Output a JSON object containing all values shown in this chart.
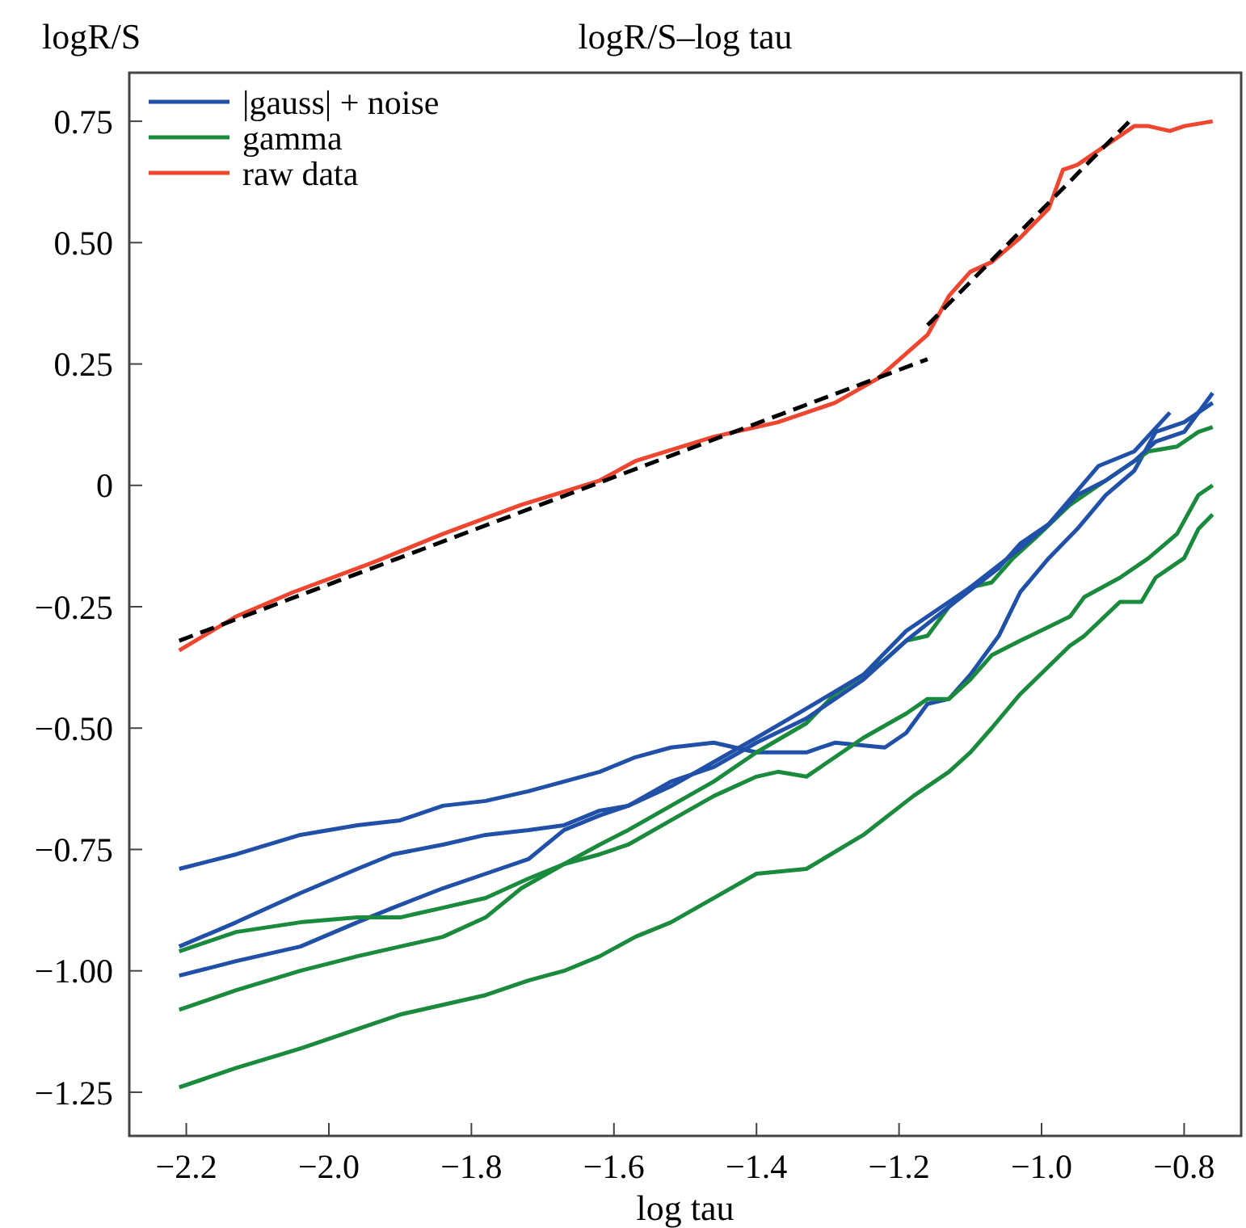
{
  "chart_data": {
    "type": "line",
    "title": "logR/S–log tau",
    "xlabel": "log tau",
    "ylabel": "logR/S",
    "xlim": [
      -2.28,
      -0.72
    ],
    "ylim": [
      -1.34,
      0.85
    ],
    "xticks": [
      {
        "value": -2.2,
        "label": "−2.2"
      },
      {
        "value": -2.0,
        "label": "−2.0"
      },
      {
        "value": -1.8,
        "label": "−1.8"
      },
      {
        "value": -1.6,
        "label": "−1.6"
      },
      {
        "value": -1.4,
        "label": "−1.4"
      },
      {
        "value": -1.2,
        "label": "−1.2"
      },
      {
        "value": -1.0,
        "label": "−1.0"
      },
      {
        "value": -0.8,
        "label": "−0.8"
      }
    ],
    "yticks": [
      {
        "value": 0.75,
        "label": "0.75"
      },
      {
        "value": 0.5,
        "label": "0.50"
      },
      {
        "value": 0.25,
        "label": "0.25"
      },
      0,
      {
        "value": -0.25,
        "label": "−0.25"
      },
      {
        "value": -0.5,
        "label": "−0.50"
      },
      {
        "value": -0.75,
        "label": "−0.75"
      },
      {
        "value": -1.0,
        "label": "−1.00"
      },
      {
        "value": -1.25,
        "label": "−1.25"
      }
    ],
    "legend": "top left",
    "line_style": "solid",
    "series": [
      {
        "name": "|gauss| + noise",
        "color": "#2150a8",
        "x": [
          -2.21,
          -2.13,
          -2.04,
          -1.96,
          -1.9,
          -1.84,
          -1.78,
          -1.72,
          -1.67,
          -1.62,
          -1.57,
          -1.52,
          -1.46,
          -1.4,
          -1.33,
          -1.29,
          -1.22,
          -1.19,
          -1.16,
          -1.13,
          -1.1,
          -1.06,
          -1.03,
          -0.99,
          -0.95,
          -0.91,
          -0.87,
          -0.84,
          -0.8,
          -0.76
        ],
        "values": [
          -0.79,
          -0.76,
          -0.72,
          -0.7,
          -0.69,
          -0.66,
          -0.65,
          -0.63,
          -0.61,
          -0.59,
          -0.56,
          -0.54,
          -0.53,
          -0.55,
          -0.55,
          -0.53,
          -0.54,
          -0.51,
          -0.45,
          -0.44,
          -0.39,
          -0.31,
          -0.22,
          -0.15,
          -0.09,
          -0.02,
          0.03,
          0.11,
          0.13,
          0.17
        ]
      },
      {
        "name": "gamma",
        "color": "#1a8a3c",
        "x": [
          -2.21,
          -2.13,
          -2.04,
          -1.96,
          -1.9,
          -1.84,
          -1.78,
          -1.73,
          -1.67,
          -1.62,
          -1.58,
          -1.52,
          -1.46,
          -1.4,
          -1.33,
          -1.29,
          -1.22,
          -1.19,
          -1.16,
          -1.13,
          -1.1,
          -1.07,
          -1.04,
          -1.01,
          -0.96,
          -0.94,
          -0.89,
          -0.85,
          -0.81,
          -0.78,
          -0.76
        ],
        "values": [
          -1.08,
          -1.04,
          -1.0,
          -0.97,
          -0.95,
          -0.93,
          -0.89,
          -0.83,
          -0.78,
          -0.74,
          -0.71,
          -0.66,
          -0.61,
          -0.55,
          -0.49,
          -0.43,
          -0.36,
          -0.32,
          -0.31,
          -0.25,
          -0.21,
          -0.2,
          -0.15,
          -0.11,
          -0.04,
          -0.02,
          0.03,
          0.07,
          0.08,
          0.11,
          0.12
        ]
      },
      {
        "name": "raw data",
        "color": "#ef4630",
        "x": [
          -2.21,
          -2.13,
          -2.05,
          -1.94,
          -1.84,
          -1.73,
          -1.62,
          -1.57,
          -1.46,
          -1.37,
          -1.29,
          -1.23,
          -1.16,
          -1.13,
          -1.1,
          -1.07,
          -1.03,
          -0.99,
          -0.97,
          -0.95,
          -0.91,
          -0.87,
          -0.85,
          -0.82,
          -0.8,
          -0.76
        ],
        "values": [
          -0.34,
          -0.27,
          -0.22,
          -0.16,
          -0.1,
          -0.04,
          0.01,
          0.05,
          0.1,
          0.13,
          0.17,
          0.22,
          0.31,
          0.39,
          0.44,
          0.46,
          0.51,
          0.57,
          0.65,
          0.66,
          0.7,
          0.74,
          0.74,
          0.73,
          0.74,
          0.75
        ]
      },
      {
        "color": "#2150a8",
        "x": [
          -2.21,
          -2.13,
          -2.04,
          -1.96,
          -1.91,
          -1.84,
          -1.78,
          -1.72,
          -1.67,
          -1.62,
          -1.58,
          -1.52,
          -1.46,
          -1.4,
          -1.33,
          -1.25,
          -1.19,
          -1.13,
          -1.1,
          -1.03,
          -0.99,
          -0.92,
          -0.87,
          -0.82
        ],
        "values": [
          -0.95,
          -0.9,
          -0.84,
          -0.79,
          -0.76,
          -0.74,
          -0.72,
          -0.71,
          -0.7,
          -0.67,
          -0.66,
          -0.62,
          -0.57,
          -0.52,
          -0.46,
          -0.39,
          -0.3,
          -0.24,
          -0.21,
          -0.13,
          -0.08,
          0.04,
          0.07,
          0.15
        ]
      },
      {
        "color": "#2150a8",
        "x": [
          -2.21,
          -2.13,
          -2.04,
          -1.96,
          -1.91,
          -1.84,
          -1.78,
          -1.72,
          -1.67,
          -1.62,
          -1.58,
          -1.52,
          -1.46,
          -1.4,
          -1.33,
          -1.25,
          -1.19,
          -1.13,
          -1.06,
          -1.03,
          -0.99,
          -0.95,
          -0.91,
          -0.87,
          -0.84,
          -0.8,
          -0.76
        ],
        "values": [
          -1.01,
          -0.98,
          -0.95,
          -0.9,
          -0.87,
          -0.83,
          -0.8,
          -0.77,
          -0.71,
          -0.68,
          -0.66,
          -0.61,
          -0.58,
          -0.53,
          -0.48,
          -0.4,
          -0.32,
          -0.25,
          -0.17,
          -0.12,
          -0.08,
          -0.02,
          0.01,
          0.05,
          0.09,
          0.11,
          0.19
        ]
      },
      {
        "color": "#1a8a3c",
        "x": [
          -2.21,
          -2.13,
          -2.04,
          -1.96,
          -1.9,
          -1.84,
          -1.78,
          -1.72,
          -1.67,
          -1.62,
          -1.58,
          -1.52,
          -1.46,
          -1.4,
          -1.37,
          -1.33,
          -1.29,
          -1.25,
          -1.19,
          -1.16,
          -1.13,
          -1.1,
          -1.07,
          -1.03,
          -0.96,
          -0.94,
          -0.89,
          -0.85,
          -0.81,
          -0.78,
          -0.76
        ],
        "values": [
          -0.96,
          -0.92,
          -0.9,
          -0.89,
          -0.89,
          -0.87,
          -0.85,
          -0.81,
          -0.78,
          -0.76,
          -0.74,
          -0.69,
          -0.64,
          -0.6,
          -0.59,
          -0.6,
          -0.56,
          -0.52,
          -0.47,
          -0.44,
          -0.44,
          -0.4,
          -0.35,
          -0.32,
          -0.27,
          -0.23,
          -0.19,
          -0.15,
          -0.1,
          -0.02,
          0.0
        ]
      },
      {
        "color": "#1a8a3c",
        "x": [
          -2.21,
          -2.13,
          -2.04,
          -1.98,
          -1.9,
          -1.84,
          -1.78,
          -1.72,
          -1.67,
          -1.62,
          -1.57,
          -1.52,
          -1.46,
          -1.4,
          -1.33,
          -1.25,
          -1.18,
          -1.13,
          -1.1,
          -1.07,
          -1.03,
          -0.96,
          -0.94,
          -0.89,
          -0.86,
          -0.84,
          -0.82,
          -0.8,
          -0.78,
          -0.76
        ],
        "values": [
          -1.24,
          -1.2,
          -1.16,
          -1.13,
          -1.09,
          -1.07,
          -1.05,
          -1.02,
          -1.0,
          -0.97,
          -0.93,
          -0.9,
          -0.85,
          -0.8,
          -0.79,
          -0.72,
          -0.64,
          -0.59,
          -0.55,
          -0.5,
          -0.43,
          -0.33,
          -0.31,
          -0.24,
          -0.24,
          -0.19,
          -0.17,
          -0.15,
          -0.09,
          -0.06
        ]
      },
      {
        "type": "line",
        "color": "#000000",
        "line_style": "dashed",
        "x": [
          -2.21,
          -1.16
        ],
        "values": [
          -0.32,
          0.26
        ]
      },
      {
        "type": "line",
        "color": "#000000",
        "line_style": "dashed",
        "x": [
          -1.16,
          -0.87
        ],
        "values": [
          0.33,
          0.76
        ]
      }
    ]
  }
}
